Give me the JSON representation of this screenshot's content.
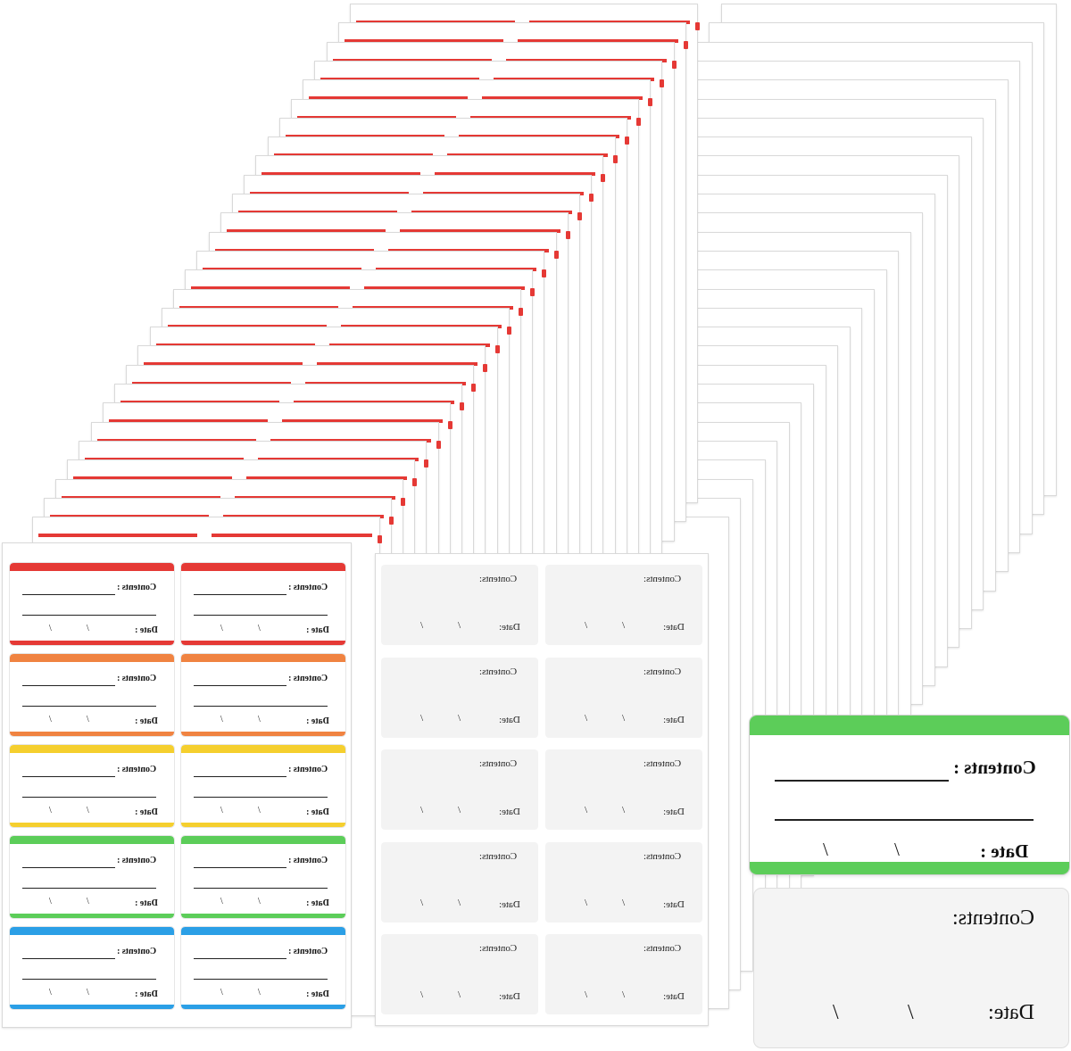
{
  "image": {
    "description_free": true,
    "colors": {
      "red": "#e53935",
      "orange": "#f08341",
      "yellow": "#f5cf2e",
      "green": "#5ccd59",
      "blue": "#2b9fe6",
      "sheet_border": "#d9d9d9",
      "white_label_fill": "#f3f3f3"
    }
  },
  "label_text": {
    "contents": "Contents :",
    "contents_plain": "Contents:",
    "date": "Date :",
    "date_plain": "Date:",
    "slash": "/"
  },
  "colored_sheet": {
    "row_colors": [
      "red",
      "orange",
      "yellow",
      "green",
      "blue"
    ]
  },
  "sample_labels": {
    "green": {
      "contents": "Contents :",
      "date": "Date :",
      "slash": "/"
    },
    "white": {
      "contents": "Contents:",
      "date": "Date:",
      "slash": "/"
    }
  }
}
